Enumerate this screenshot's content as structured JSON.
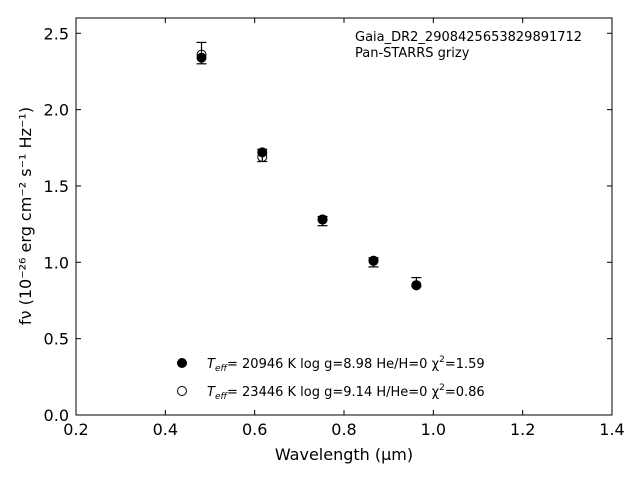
{
  "chart_data": {
    "type": "scatter",
    "xlabel": "Wavelength (μm)",
    "ylabel": "fν (10⁻²⁶ erg cm⁻² s⁻¹ Hz⁻¹)",
    "xlim": [
      0.2,
      1.4
    ],
    "ylim": [
      0.0,
      2.6
    ],
    "x_ticks": [
      "0.2",
      "0.4",
      "0.6",
      "0.8",
      "1.0",
      "1.2",
      "1.4"
    ],
    "y_ticks": [
      "0.0",
      "0.5",
      "1.0",
      "1.5",
      "2.0",
      "2.5"
    ],
    "grid": false,
    "annotations": [
      "Gaia_DR2_2908425653829891712",
      "Pan-STARRS grizy"
    ],
    "observed": {
      "x": [
        0.481,
        0.617,
        0.752,
        0.866,
        0.962
      ],
      "y": [
        2.37,
        1.7,
        1.27,
        1.0,
        0.87
      ],
      "err": [
        0.07,
        0.04,
        0.03,
        0.03,
        0.03
      ]
    },
    "series": [
      {
        "marker": "filled-circle",
        "legend": {
          "teff_label": "T",
          "teff_sub": "eff",
          "teff_value": "= 20946 K  log g=8.98  He/H=0  χ",
          "chi_sup": "2",
          "chi_value": "=1.59"
        },
        "x": [
          0.481,
          0.617,
          0.752,
          0.866,
          0.962
        ],
        "y": [
          2.34,
          1.72,
          1.28,
          1.01,
          0.85
        ]
      },
      {
        "marker": "open-circle",
        "legend": {
          "teff_label": "T",
          "teff_sub": "eff",
          "teff_value": "= 23446 K  log g=9.14  H/He=0  χ",
          "chi_sup": "2",
          "chi_value": "=0.86"
        },
        "x": [
          0.481,
          0.617,
          0.752,
          0.866,
          0.962
        ],
        "y": [
          2.36,
          1.69,
          1.28,
          1.01,
          0.85
        ]
      }
    ]
  }
}
